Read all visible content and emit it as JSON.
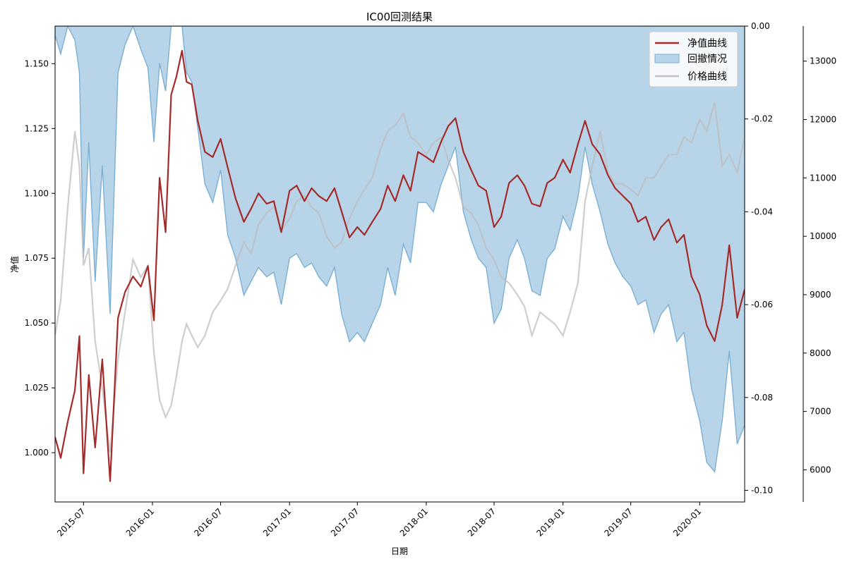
{
  "chart_data": {
    "type": "line",
    "title": "IC00回测结果",
    "xlabel": "日期",
    "ylabel": "净值",
    "x_ticks": [
      "2015-07",
      "2016-01",
      "2016-07",
      "2017-01",
      "2017-07",
      "2018-01",
      "2018-07",
      "2019-01",
      "2019-07",
      "2020-01"
    ],
    "x_range": [
      "2015-04-16",
      "2020-04-30"
    ],
    "y_left": {
      "ticks": [
        "1.000",
        "1.025",
        "1.050",
        "1.075",
        "1.100",
        "1.125",
        "1.150"
      ],
      "range": [
        0.981,
        1.1645
      ]
    },
    "y_right1": {
      "ticks": [
        "0.00",
        "-0.02",
        "-0.04",
        "-0.06",
        "-0.08",
        "-0.10"
      ],
      "range": [
        -0.1025,
        0
      ]
    },
    "y_right2": {
      "ticks": [
        "6000",
        "7000",
        "8000",
        "9000",
        "10000",
        "11000",
        "12000",
        "13000"
      ],
      "range": [
        5450,
        13600
      ]
    },
    "legend": {
      "placement": "top-right",
      "entries": [
        "净值曲线",
        "回撤情况",
        "价格曲线"
      ]
    },
    "grid": false,
    "colors": {
      "nav": "#a52a2a",
      "drawdown_fill": "#b8d4e8",
      "drawdown_line": "#7bafd4",
      "price": "#bdbdbd"
    },
    "series": [
      {
        "name": "净值曲线",
        "axis": "left",
        "x": [
          "2015-04-16",
          "2015-05-01",
          "2015-05-20",
          "2015-06-08",
          "2015-06-20",
          "2015-07-01",
          "2015-07-15",
          "2015-08-01",
          "2015-08-20",
          "2015-09-10",
          "2015-10-01",
          "2015-10-20",
          "2015-11-10",
          "2015-12-01",
          "2015-12-20",
          "2016-01-05",
          "2016-01-20",
          "2016-02-05",
          "2016-02-20",
          "2016-03-05",
          "2016-03-20",
          "2016-04-01",
          "2016-04-15",
          "2016-05-01",
          "2016-05-20",
          "2016-06-10",
          "2016-07-01",
          "2016-07-20",
          "2016-08-10",
          "2016-09-01",
          "2016-09-20",
          "2016-10-10",
          "2016-11-01",
          "2016-11-20",
          "2016-12-10",
          "2017-01-01",
          "2017-01-20",
          "2017-02-10",
          "2017-03-01",
          "2017-03-20",
          "2017-04-10",
          "2017-05-01",
          "2017-05-20",
          "2017-06-10",
          "2017-07-01",
          "2017-07-20",
          "2017-08-10",
          "2017-09-01",
          "2017-09-20",
          "2017-10-10",
          "2017-11-01",
          "2017-11-20",
          "2017-12-10",
          "2018-01-01",
          "2018-01-20",
          "2018-02-10",
          "2018-03-01",
          "2018-03-20",
          "2018-04-10",
          "2018-05-01",
          "2018-05-20",
          "2018-06-10",
          "2018-07-01",
          "2018-07-20",
          "2018-08-10",
          "2018-09-01",
          "2018-09-20",
          "2018-10-10",
          "2018-11-01",
          "2018-11-20",
          "2018-12-10",
          "2019-01-01",
          "2019-01-20",
          "2019-02-10",
          "2019-03-01",
          "2019-03-20",
          "2019-04-10",
          "2019-05-01",
          "2019-05-20",
          "2019-06-10",
          "2019-07-01",
          "2019-07-20",
          "2019-08-10",
          "2019-09-01",
          "2019-09-20",
          "2019-10-10",
          "2019-11-01",
          "2019-11-20",
          "2019-12-10",
          "2020-01-01",
          "2020-01-20",
          "2020-02-10",
          "2020-03-01",
          "2020-03-20",
          "2020-04-10",
          "2020-04-30"
        ],
        "values": [
          1.006,
          0.998,
          1.012,
          1.024,
          1.045,
          0.992,
          1.03,
          1.002,
          1.036,
          0.989,
          1.052,
          1.062,
          1.068,
          1.064,
          1.072,
          1.051,
          1.106,
          1.085,
          1.138,
          1.145,
          1.155,
          1.143,
          1.142,
          1.128,
          1.116,
          1.114,
          1.121,
          1.11,
          1.098,
          1.089,
          1.094,
          1.1,
          1.096,
          1.097,
          1.085,
          1.101,
          1.103,
          1.097,
          1.102,
          1.099,
          1.097,
          1.102,
          1.093,
          1.083,
          1.087,
          1.084,
          1.089,
          1.094,
          1.103,
          1.097,
          1.107,
          1.101,
          1.116,
          1.114,
          1.112,
          1.12,
          1.126,
          1.129,
          1.116,
          1.109,
          1.103,
          1.101,
          1.087,
          1.091,
          1.104,
          1.107,
          1.103,
          1.096,
          1.095,
          1.104,
          1.106,
          1.113,
          1.108,
          1.119,
          1.128,
          1.119,
          1.115,
          1.107,
          1.102,
          1.099,
          1.096,
          1.089,
          1.091,
          1.082,
          1.087,
          1.09,
          1.081,
          1.084,
          1.068,
          1.061,
          1.049,
          1.043,
          1.057,
          1.08,
          1.052,
          1.063
        ]
      },
      {
        "name": "回撤情况",
        "axis": "right1",
        "x": [
          "2015-04-16",
          "2015-05-01",
          "2015-05-20",
          "2015-06-08",
          "2015-06-20",
          "2015-07-01",
          "2015-07-15",
          "2015-08-01",
          "2015-08-20",
          "2015-09-10",
          "2015-10-01",
          "2015-10-20",
          "2015-11-10",
          "2015-12-01",
          "2015-12-20",
          "2016-01-05",
          "2016-01-20",
          "2016-02-05",
          "2016-02-20",
          "2016-03-05",
          "2016-03-20",
          "2016-04-01",
          "2016-04-15",
          "2016-05-01",
          "2016-05-20",
          "2016-06-10",
          "2016-07-01",
          "2016-07-20",
          "2016-08-10",
          "2016-09-01",
          "2016-09-20",
          "2016-10-10",
          "2016-11-01",
          "2016-11-20",
          "2016-12-10",
          "2017-01-01",
          "2017-01-20",
          "2017-02-10",
          "2017-03-01",
          "2017-03-20",
          "2017-04-10",
          "2017-05-01",
          "2017-05-20",
          "2017-06-10",
          "2017-07-01",
          "2017-07-20",
          "2017-08-10",
          "2017-09-01",
          "2017-09-20",
          "2017-10-10",
          "2017-11-01",
          "2017-11-20",
          "2017-12-10",
          "2018-01-01",
          "2018-01-20",
          "2018-02-10",
          "2018-03-01",
          "2018-03-20",
          "2018-04-10",
          "2018-05-01",
          "2018-05-20",
          "2018-06-10",
          "2018-07-01",
          "2018-07-20",
          "2018-08-10",
          "2018-09-01",
          "2018-09-20",
          "2018-10-10",
          "2018-11-01",
          "2018-11-20",
          "2018-12-10",
          "2019-01-01",
          "2019-01-20",
          "2019-02-10",
          "2019-03-01",
          "2019-03-20",
          "2019-04-10",
          "2019-05-01",
          "2019-05-20",
          "2019-06-10",
          "2019-07-01",
          "2019-07-20",
          "2019-08-10",
          "2019-09-01",
          "2019-09-20",
          "2019-10-10",
          "2019-11-01",
          "2019-11-20",
          "2019-12-10",
          "2020-01-01",
          "2020-01-20",
          "2020-02-10",
          "2020-03-01",
          "2020-03-20",
          "2020-04-10",
          "2020-04-30"
        ],
        "values": [
          -0.002,
          -0.006,
          0.0,
          -0.003,
          -0.01,
          -0.05,
          -0.025,
          -0.055,
          -0.03,
          -0.062,
          -0.01,
          -0.004,
          0.0,
          -0.005,
          -0.009,
          -0.025,
          -0.008,
          -0.014,
          0.0,
          0.0,
          0.0,
          -0.01,
          -0.012,
          -0.022,
          -0.034,
          -0.038,
          -0.031,
          -0.045,
          -0.05,
          -0.058,
          -0.055,
          -0.052,
          -0.054,
          -0.053,
          -0.06,
          -0.05,
          -0.049,
          -0.052,
          -0.051,
          -0.054,
          -0.056,
          -0.052,
          -0.062,
          -0.068,
          -0.066,
          -0.068,
          -0.064,
          -0.06,
          -0.052,
          -0.058,
          -0.047,
          -0.051,
          -0.038,
          -0.038,
          -0.04,
          -0.034,
          -0.03,
          -0.026,
          -0.04,
          -0.046,
          -0.05,
          -0.052,
          -0.064,
          -0.061,
          -0.05,
          -0.046,
          -0.05,
          -0.057,
          -0.058,
          -0.05,
          -0.048,
          -0.041,
          -0.044,
          -0.037,
          -0.026,
          -0.034,
          -0.04,
          -0.047,
          -0.051,
          -0.054,
          -0.056,
          -0.06,
          -0.059,
          -0.066,
          -0.062,
          -0.06,
          -0.068,
          -0.066,
          -0.078,
          -0.085,
          -0.094,
          -0.096,
          -0.085,
          -0.07,
          -0.09,
          -0.086
        ]
      },
      {
        "name": "价格曲线",
        "axis": "right2",
        "x": [
          "2015-04-16",
          "2015-05-01",
          "2015-05-20",
          "2015-06-08",
          "2015-06-20",
          "2015-07-01",
          "2015-07-15",
          "2015-08-01",
          "2015-08-20",
          "2015-09-10",
          "2015-10-01",
          "2015-10-20",
          "2015-11-10",
          "2015-12-01",
          "2015-12-20",
          "2016-01-05",
          "2016-01-20",
          "2016-02-05",
          "2016-02-20",
          "2016-03-05",
          "2016-03-20",
          "2016-04-01",
          "2016-04-15",
          "2016-05-01",
          "2016-05-20",
          "2016-06-10",
          "2016-07-01",
          "2016-07-20",
          "2016-08-10",
          "2016-09-01",
          "2016-09-20",
          "2016-10-10",
          "2016-11-01",
          "2016-11-20",
          "2016-12-10",
          "2017-01-01",
          "2017-01-20",
          "2017-02-10",
          "2017-03-01",
          "2017-03-20",
          "2017-04-10",
          "2017-05-01",
          "2017-05-20",
          "2017-06-10",
          "2017-07-01",
          "2017-07-20",
          "2017-08-10",
          "2017-09-01",
          "2017-09-20",
          "2017-10-10",
          "2017-11-01",
          "2017-11-20",
          "2017-12-10",
          "2018-01-01",
          "2018-01-20",
          "2018-02-10",
          "2018-03-01",
          "2018-03-20",
          "2018-04-10",
          "2018-05-01",
          "2018-05-20",
          "2018-06-10",
          "2018-07-01",
          "2018-07-20",
          "2018-08-10",
          "2018-09-01",
          "2018-09-20",
          "2018-10-10",
          "2018-11-01",
          "2018-11-20",
          "2018-12-10",
          "2019-01-01",
          "2019-01-20",
          "2019-02-10",
          "2019-03-01",
          "2019-03-20",
          "2019-04-10",
          "2019-05-01",
          "2019-05-20",
          "2019-06-10",
          "2019-07-01",
          "2019-07-20",
          "2019-08-10",
          "2019-09-01",
          "2019-09-20",
          "2019-10-10",
          "2019-11-01",
          "2019-11-20",
          "2019-12-10",
          "2020-01-01",
          "2020-01-20",
          "2020-02-10",
          "2020-03-01",
          "2020-03-20",
          "2020-04-10",
          "2020-04-30"
        ],
        "values": [
          8300,
          8900,
          10500,
          11800,
          11200,
          9500,
          9800,
          8200,
          7400,
          6300,
          7900,
          8700,
          9600,
          9300,
          9500,
          8000,
          7200,
          6900,
          7100,
          7600,
          8200,
          8500,
          8300,
          8100,
          8300,
          8700,
          8900,
          9100,
          9500,
          9900,
          9700,
          10200,
          10400,
          10500,
          10100,
          10300,
          10600,
          10700,
          10500,
          10400,
          10000,
          9800,
          9900,
          10300,
          10600,
          10800,
          11000,
          11500,
          11800,
          11900,
          12100,
          11700,
          11600,
          11400,
          11600,
          11700,
          11300,
          11000,
          10500,
          10400,
          10200,
          9800,
          9600,
          9300,
          9200,
          9000,
          8800,
          8300,
          8700,
          8600,
          8500,
          8300,
          8700,
          9200,
          10600,
          11200,
          11800,
          11100,
          10900,
          10900,
          10800,
          10700,
          11000,
          11000,
          11200,
          11400,
          11400,
          11700,
          11600,
          12000,
          11800,
          12300,
          11200,
          11400,
          11100,
          11700
        ]
      }
    ]
  }
}
